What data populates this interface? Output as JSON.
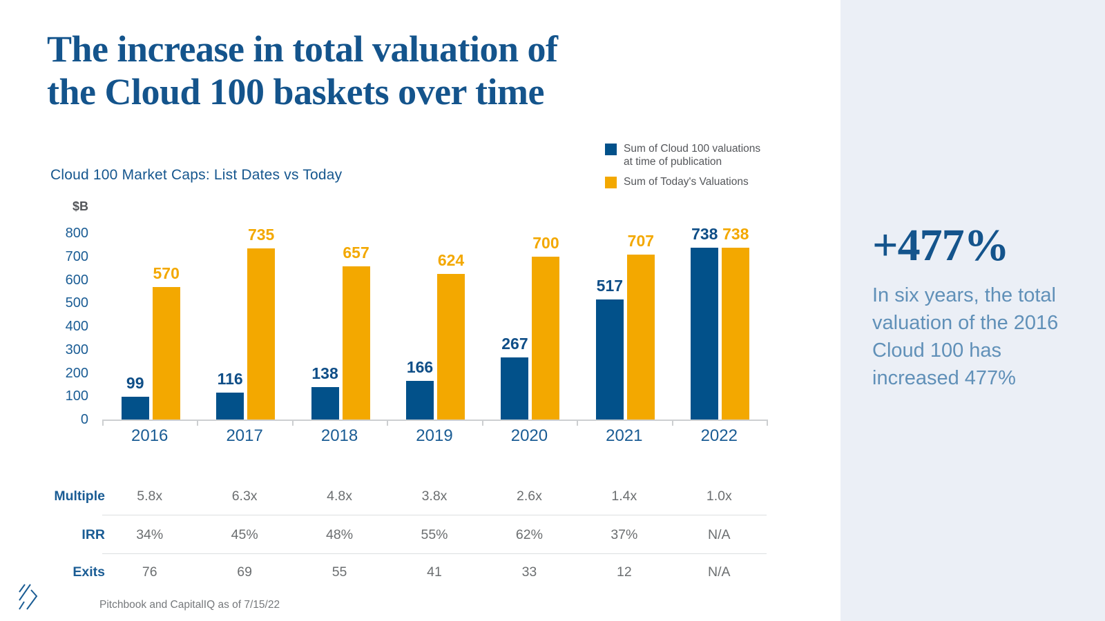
{
  "title": {
    "line1": "The increase in total valuation of",
    "line2": "the Cloud 100 baskets over time"
  },
  "chart": {
    "subtitle": "Cloud 100 Market Caps: List Dates vs Today",
    "source": "Pitchbook and CapitalIQ as of 7/15/22"
  },
  "chart_data": {
    "type": "bar",
    "title": "Cloud 100 Market Caps: List Dates vs Today",
    "ylabel": "$B",
    "ylim": [
      0,
      800
    ],
    "yticks": [
      800,
      700,
      600,
      500,
      400,
      300,
      200,
      100,
      0
    ],
    "grid": false,
    "legend_position": "top-right",
    "categories": [
      "2016",
      "2017",
      "2018",
      "2019",
      "2020",
      "2021",
      "2022"
    ],
    "series": [
      {
        "name": "Sum of Cloud 100 valuations at time of publication",
        "color": "#02518A",
        "values": [
          99,
          116,
          138,
          166,
          267,
          517,
          738
        ]
      },
      {
        "name": "Sum of Today's Valuations",
        "color": "#F3A800",
        "values": [
          570,
          735,
          657,
          624,
          700,
          707,
          738
        ]
      }
    ]
  },
  "table": {
    "rows": [
      {
        "label": "Multiple",
        "values": [
          "5.8x",
          "6.3x",
          "4.8x",
          "3.8x",
          "2.6x",
          "1.4x",
          "1.0x"
        ]
      },
      {
        "label": "IRR",
        "values": [
          "34%",
          "45%",
          "48%",
          "55%",
          "62%",
          "37%",
          "N/A"
        ]
      },
      {
        "label": "Exits",
        "values": [
          "76",
          "69",
          "55",
          "41",
          "33",
          "12",
          "N/A"
        ]
      }
    ]
  },
  "sidebar": {
    "stat": "+477%",
    "description": "In six years, the total valuation of the 2016 Cloud 100 has increased 477%"
  },
  "colors": {
    "title_blue": "#14548C",
    "bar_blue": "#02518A",
    "bar_orange": "#F3A800",
    "axis_label_blue": "#1A5C94",
    "legend_text": "#54565A",
    "table_value_gray": "#6B6E70",
    "source_gray": "#75787B",
    "panel_background": "#EBEFF6",
    "sidebar_text_blue": "#6090B8",
    "axis_line_gray": "#CDCFD1"
  }
}
